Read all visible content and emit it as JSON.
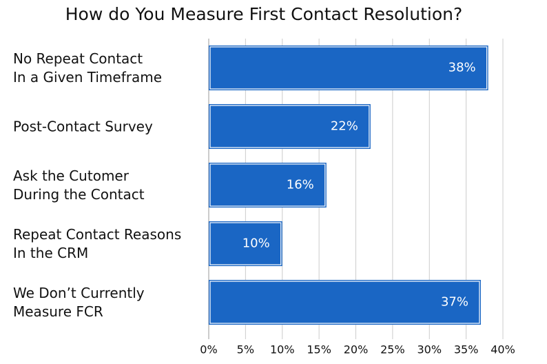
{
  "chart_data": {
    "type": "bar",
    "orientation": "horizontal",
    "title": "How do You Measure First Contact Resolution?",
    "categories": [
      "No Repeat Contact\nIn a Given Timeframe",
      "Post-Contact Survey",
      "Ask the Cutomer\nDuring the Contact",
      "Repeat Contact Reasons\nIn the CRM",
      "We Don’t Currently\nMeasure FCR"
    ],
    "values": [
      38,
      22,
      16,
      10,
      37
    ],
    "value_labels": [
      "38%",
      "22%",
      "16%",
      "10%",
      "37%"
    ],
    "color": "#1a66c4",
    "xlim": [
      0,
      40
    ],
    "xticks": [
      {
        "value": 0,
        "label": "0%"
      },
      {
        "value": 5,
        "label": "5%"
      },
      {
        "value": 10,
        "label": "10%"
      },
      {
        "value": 15,
        "label": "15%"
      },
      {
        "value": 20,
        "label": "20%"
      },
      {
        "value": 25,
        "label": "25%"
      },
      {
        "value": 30,
        "label": "30%"
      },
      {
        "value": 35,
        "label": "35%"
      },
      {
        "value": 40,
        "label": "40%"
      }
    ],
    "grid": true
  }
}
